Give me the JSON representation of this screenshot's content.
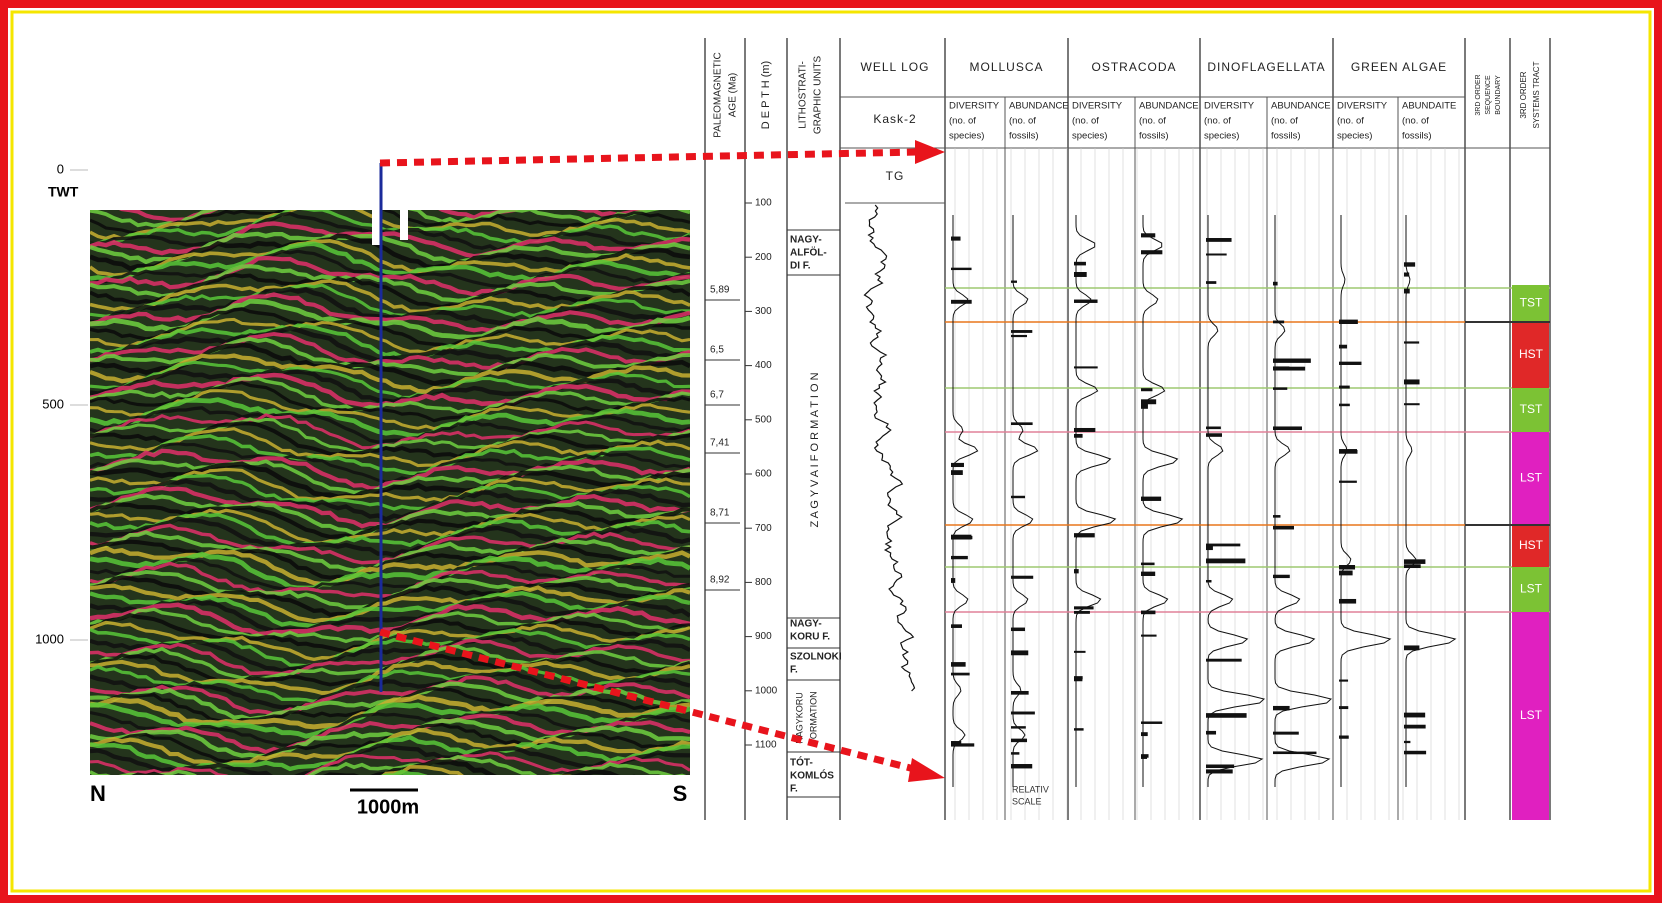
{
  "seismic": {
    "twt_label": "TWT",
    "twt_ticks": [
      "0",
      "500",
      "1000"
    ],
    "north": "N",
    "south": "S",
    "scale": "1000m"
  },
  "columns": {
    "age": [
      "PALEOMAGNETIC",
      "AGE (Ma)"
    ],
    "depth": "D E P T H (m)",
    "litho": [
      "LITHOSTRATI-",
      "GRAPHIC UNITS"
    ],
    "well_log": "WELL LOG",
    "well_name": "Kask-2",
    "tg": "TG",
    "groups": [
      {
        "name": "MOLLUSCA",
        "sub": [
          [
            "DIVERSITY",
            "(no. of",
            "species)"
          ],
          [
            "ABUNDANCE",
            "(no. of",
            "fossils)"
          ]
        ]
      },
      {
        "name": "OSTRACODA",
        "sub": [
          [
            "DIVERSITY",
            "(no. of",
            "species)"
          ],
          [
            "ABUNDANCE",
            "(no. of",
            "fossils)"
          ]
        ]
      },
      {
        "name": "DINOFLAGELLATA",
        "sub": [
          [
            "DIVERSITY",
            "(no. of",
            "species)"
          ],
          [
            "ABUNDANCE",
            "(no. of",
            "fossils)"
          ]
        ]
      },
      {
        "name": "GREEN ALGAE",
        "sub": [
          [
            "DIVERSITY",
            "(no. of",
            "species)"
          ],
          [
            "ABUNDAITE",
            "(no. of",
            "fossils)"
          ]
        ]
      }
    ],
    "boundary": [
      "3RD ORDER",
      "SEQUENCE",
      "BOUNDARY"
    ],
    "tract": [
      "3RD ORDER",
      "SYSTEMS TRACT"
    ]
  },
  "ages": [
    "5,89",
    "6,5",
    "6,7",
    "7,41",
    "8,71",
    "8,92"
  ],
  "depths": [
    "100",
    "200",
    "300",
    "400",
    "500",
    "600",
    "700",
    "800",
    "900",
    "1000",
    "1100"
  ],
  "formations": {
    "nagyalfoldi": [
      "NAGY-",
      "ALFÖL-",
      "DI F."
    ],
    "zagyvai": "Z A G Y V A I   F O R M A T I O N",
    "nagykoru_f": [
      "NAGY-",
      "KORU F."
    ],
    "szolnoki": [
      "SZOLNOKI",
      "F."
    ],
    "nagykoru_formation": [
      "NAGYKORU",
      "FORMATION"
    ],
    "totkomlos": [
      "TÓT-",
      "KOMLÓS",
      "F."
    ]
  },
  "tracts": [
    "TST",
    "HST",
    "TST",
    "LST",
    "HST",
    "LST",
    "LST"
  ],
  "footer": [
    "RELATIV",
    "SCALE"
  ]
}
